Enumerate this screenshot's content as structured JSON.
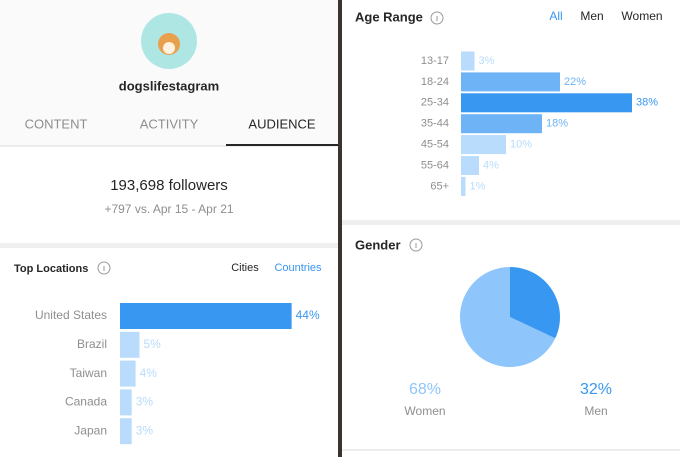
{
  "profile": {
    "username": "dogslifestagram"
  },
  "tabs": [
    "CONTENT",
    "ACTIVITY",
    "AUDIENCE"
  ],
  "followers": {
    "count": "193,698 followers",
    "change": "+797 vs. Apr 15 - Apr 21"
  },
  "top_locations": {
    "title": "Top Locations",
    "filters": [
      "Cities",
      "Countries"
    ],
    "chart": {
      "type": "bar",
      "categories": [
        "United States",
        "Brazil",
        "Taiwan",
        "Canada",
        "Japan"
      ],
      "values": [
        44,
        5,
        4,
        3,
        3
      ],
      "value_labels": [
        "44%",
        "5%",
        "4%",
        "3%",
        "3%"
      ],
      "colors": [
        "#3897f0",
        "#b9dbfc",
        "#b9dbfc",
        "#b9dbfc",
        "#b9dbfc"
      ]
    }
  },
  "age_range": {
    "title": "Age Range",
    "filters": [
      "All",
      "Men",
      "Women"
    ],
    "chart": {
      "type": "bar",
      "categories": [
        "13-17",
        "18-24",
        "25-34",
        "35-44",
        "45-54",
        "55-64",
        "65+"
      ],
      "values": [
        3,
        22,
        38,
        18,
        10,
        4,
        1
      ],
      "value_labels": [
        "3%",
        "22%",
        "38%",
        "18%",
        "10%",
        "4%",
        "1%"
      ],
      "colors": [
        "#b9dbfc",
        "#6db3f6",
        "#3897f0",
        "#6db3f6",
        "#b9dbfc",
        "#b9dbfc",
        "#b9dbfc"
      ]
    }
  },
  "gender": {
    "title": "Gender",
    "chart": {
      "type": "pie",
      "categories": [
        "Women",
        "Men"
      ],
      "values": [
        68,
        32
      ],
      "value_labels": [
        "68%",
        "32%"
      ],
      "colors": [
        "#8ec5fb",
        "#3897f0"
      ]
    }
  }
}
